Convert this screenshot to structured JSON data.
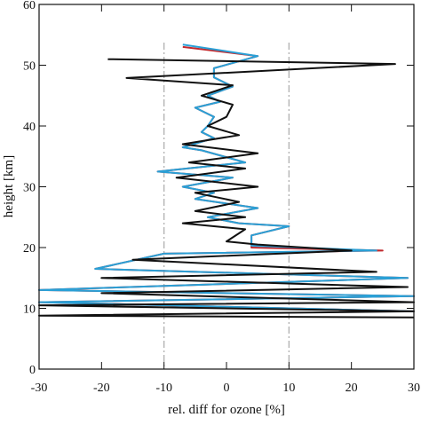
{
  "chart_data": {
    "type": "profile",
    "xlabel": "rel. diff for ozone [%]",
    "ylabel": "height [km]",
    "xlim": [
      -30,
      30
    ],
    "xticks": [
      -30,
      -20,
      -10,
      0,
      10,
      20,
      30
    ],
    "ylim": [
      0,
      60
    ],
    "yticks": [
      0,
      10,
      20,
      30,
      40,
      50,
      60
    ],
    "vlines": [
      -10,
      10
    ],
    "vline_color": "#b0b0b0",
    "series": [
      {
        "color": "#c0282d",
        "x": [
          -7,
          5,
          -2,
          -2,
          1,
          -3,
          -1,
          -5,
          -2,
          -3,
          -4,
          -2,
          -7,
          -4,
          3,
          -11,
          1,
          -7,
          -2,
          -5,
          5,
          -3,
          2,
          10,
          4,
          4,
          25,
          -10,
          -21,
          29,
          -30,
          30,
          -30,
          30
        ],
        "y": [
          53,
          51.5,
          49.5,
          48,
          46.5,
          45,
          44,
          43,
          41.5,
          40,
          39,
          38,
          36.5,
          36,
          34,
          32.5,
          31.5,
          30,
          29,
          28,
          26.5,
          25,
          24,
          23.5,
          22,
          20,
          19.5,
          19,
          16.5,
          15,
          13,
          12,
          11,
          9.5
        ]
      },
      {
        "color": "#2aa0d6",
        "x": [
          -7,
          5,
          -2,
          -2,
          1,
          -3,
          -1,
          -5,
          -2,
          -3,
          -4,
          -2,
          -7,
          -4,
          3,
          -11,
          1,
          -7,
          -2,
          -5,
          5,
          -3,
          2,
          10,
          4,
          4,
          24,
          -10,
          -21,
          29,
          -30,
          30,
          -30,
          30
        ],
        "y": [
          53.4,
          51.5,
          49.5,
          48,
          46.5,
          45,
          44,
          43,
          41.5,
          40,
          39,
          38,
          36.5,
          36,
          34,
          32.5,
          31.5,
          30,
          29,
          28,
          26.5,
          25,
          24,
          23.5,
          22,
          20.3,
          19.5,
          19,
          16.5,
          15,
          13,
          12,
          11,
          9.5
        ]
      },
      {
        "color": "#111111",
        "x": [
          -19,
          27,
          -16,
          1,
          -4,
          1,
          0,
          -3,
          2,
          -7,
          5,
          -6,
          3,
          -8,
          5,
          -5,
          2,
          -5,
          3,
          -7,
          3,
          0,
          5,
          20,
          -15,
          24,
          -20,
          29,
          -20,
          30,
          -30,
          30,
          -30,
          30
        ],
        "y": [
          51,
          50.2,
          47.9,
          46.7,
          45,
          43.5,
          41.5,
          40,
          38.5,
          37,
          35.5,
          34,
          33,
          31.5,
          30,
          29,
          27.5,
          26,
          25,
          24,
          23,
          21,
          20.5,
          19.5,
          18,
          16,
          15,
          13.5,
          12.5,
          11,
          10.5,
          9.5,
          8.8,
          8.5
        ]
      }
    ]
  }
}
